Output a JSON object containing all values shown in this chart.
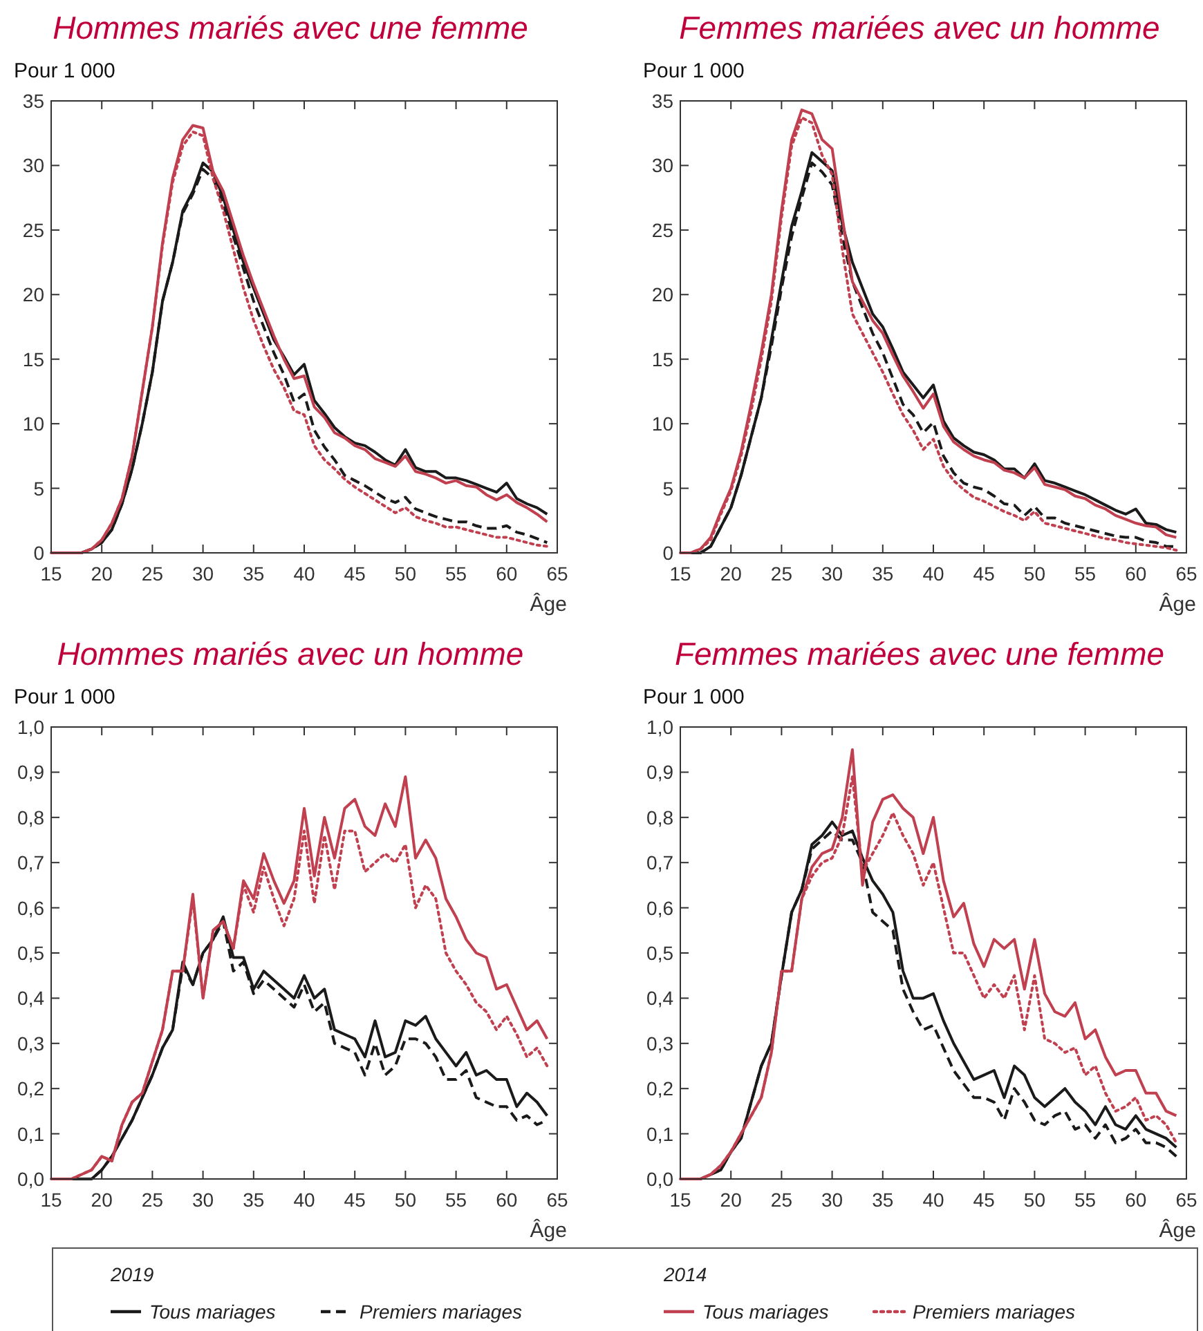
{
  "chart_data": [
    {
      "type": "line",
      "title": "Hommes mariés avec une femme",
      "ylabel": "Pour 1 000",
      "xlabel": "Âge",
      "legend": "bottom",
      "annotations": [
        "2019",
        "2014"
      ],
      "x": [
        15,
        16,
        17,
        18,
        19,
        20,
        21,
        22,
        23,
        24,
        25,
        26,
        27,
        28,
        29,
        30,
        31,
        32,
        33,
        34,
        35,
        36,
        37,
        38,
        39,
        40,
        41,
        42,
        43,
        44,
        45,
        46,
        47,
        48,
        49,
        50,
        51,
        52,
        53,
        54,
        55,
        56,
        57,
        58,
        59,
        60,
        61,
        62,
        63,
        64
      ],
      "xlim": [
        15,
        65
      ],
      "xticks": [
        15,
        20,
        25,
        30,
        35,
        40,
        45,
        50,
        55,
        60,
        65
      ],
      "ylim": [
        0,
        35
      ],
      "yticks": [
        0,
        5,
        10,
        15,
        20,
        25,
        30,
        35
      ],
      "series": [
        {
          "name": "Tous mariages",
          "color": "#1a1a1a",
          "line_style": "solid",
          "values": [
            0,
            0,
            0,
            0,
            0.3,
            0.8,
            1.8,
            3.8,
            6.5,
            10,
            14,
            19.5,
            22.5,
            26.5,
            28,
            30.2,
            29.5,
            27.5,
            25,
            22.5,
            20.5,
            18.5,
            16.5,
            15.2,
            13.8,
            14.6,
            11.8,
            10.8,
            9.7,
            9,
            8.5,
            8.3,
            7.8,
            7.2,
            6.8,
            8,
            6.6,
            6.3,
            6.3,
            5.8,
            5.8,
            5.6,
            5.3,
            5,
            4.7,
            5.4,
            4.2,
            3.8,
            3.5,
            3
          ]
        },
        {
          "name": "Premiers mariages",
          "color": "#1a1a1a",
          "line_style": "dashed",
          "values": [
            0,
            0,
            0,
            0,
            0.3,
            0.8,
            1.8,
            3.8,
            6.5,
            10,
            14,
            19.5,
            22.5,
            26.3,
            27.8,
            29.7,
            29,
            27,
            24.5,
            22,
            19.5,
            17.5,
            15.5,
            13.8,
            11.7,
            12.3,
            9.5,
            8.2,
            7.2,
            6,
            5.6,
            5.2,
            4.7,
            4.2,
            3.9,
            4.3,
            3.4,
            3.1,
            2.8,
            2.6,
            2.4,
            2.4,
            2.1,
            1.9,
            1.9,
            2.1,
            1.6,
            1.4,
            1.1,
            0.8
          ]
        },
        {
          "name": "Tous mariages",
          "color": "#c0404f",
          "line_style": "solid",
          "values": [
            0,
            0,
            0,
            0,
            0.3,
            1,
            2.3,
            4.2,
            7.5,
            12.5,
            17.5,
            24,
            29,
            32,
            33.1,
            32.9,
            29.5,
            28,
            25.5,
            23,
            20.8,
            18.8,
            16.8,
            15,
            13.5,
            13.7,
            11.3,
            10.5,
            9.3,
            8.9,
            8.3,
            8,
            7.3,
            7,
            6.7,
            7.5,
            6.3,
            6.1,
            5.8,
            5.4,
            5.6,
            5.2,
            5.1,
            4.5,
            4.1,
            4.5,
            3.9,
            3.5,
            3,
            2.4
          ]
        },
        {
          "name": "Premiers mariages",
          "color": "#c0404f",
          "line_style": "dotted",
          "values": [
            0,
            0,
            0,
            0,
            0.3,
            1,
            2.3,
            4.2,
            7.5,
            12.5,
            17.5,
            23.8,
            28.7,
            31.5,
            32.6,
            32.3,
            29,
            26.5,
            23.5,
            20.5,
            18,
            16,
            14.2,
            12.8,
            11,
            10.7,
            8.3,
            7.2,
            6.5,
            5.7,
            5.1,
            4.6,
            4.1,
            3.6,
            3.1,
            3.5,
            2.8,
            2.5,
            2.3,
            2,
            2,
            1.8,
            1.6,
            1.4,
            1.2,
            1.2,
            1,
            0.8,
            0.6,
            0.5
          ]
        }
      ]
    },
    {
      "type": "line",
      "title": "Femmes mariées avec un homme",
      "ylabel": "Pour 1 000",
      "xlabel": "Âge",
      "x": [
        15,
        16,
        17,
        18,
        19,
        20,
        21,
        22,
        23,
        24,
        25,
        26,
        27,
        28,
        29,
        30,
        31,
        32,
        33,
        34,
        35,
        36,
        37,
        38,
        39,
        40,
        41,
        42,
        43,
        44,
        45,
        46,
        47,
        48,
        49,
        50,
        51,
        52,
        53,
        54,
        55,
        56,
        57,
        58,
        59,
        60,
        61,
        62,
        63,
        64
      ],
      "xlim": [
        15,
        65
      ],
      "xticks": [
        15,
        20,
        25,
        30,
        35,
        40,
        45,
        50,
        55,
        60,
        65
      ],
      "ylim": [
        0,
        35
      ],
      "yticks": [
        0,
        5,
        10,
        15,
        20,
        25,
        30,
        35
      ],
      "series": [
        {
          "color": "#1a1a1a",
          "line_style": "solid",
          "values": [
            0,
            0,
            0,
            0.5,
            2,
            3.5,
            6,
            9,
            12,
            16.5,
            21,
            25.3,
            28,
            31,
            30.3,
            29.6,
            25.5,
            22.5,
            20.5,
            18.5,
            17.5,
            15.8,
            14,
            13,
            12,
            13,
            10.2,
            8.9,
            8.3,
            7.8,
            7.6,
            7.2,
            6.5,
            6.5,
            5.8,
            6.9,
            5.6,
            5.4,
            5.1,
            4.8,
            4.5,
            4.1,
            3.7,
            3.3,
            3,
            3.4,
            2.3,
            2.2,
            1.8,
            1.6
          ]
        },
        {
          "color": "#1a1a1a",
          "line_style": "dashed",
          "values": [
            0,
            0,
            0,
            0.5,
            2,
            3.5,
            6,
            9,
            12,
            16,
            20.5,
            24.5,
            27.5,
            30.2,
            29.5,
            28.5,
            24.5,
            21,
            19,
            17,
            15.5,
            13.5,
            11.5,
            10.7,
            9.3,
            10.1,
            7.5,
            6.2,
            5.4,
            5.1,
            4.9,
            4.4,
            3.8,
            3.7,
            2.9,
            3.6,
            2.7,
            2.7,
            2.3,
            2.1,
            1.9,
            1.7,
            1.5,
            1.3,
            1.2,
            1.2,
            0.9,
            0.8,
            0.5,
            0.5
          ]
        },
        {
          "color": "#c0404f",
          "line_style": "solid",
          "values": [
            0,
            0,
            0.3,
            1.2,
            3.2,
            5,
            7.8,
            11.5,
            15.5,
            20,
            26.5,
            32,
            34.3,
            34,
            32,
            31.3,
            26,
            21,
            19.5,
            18,
            17,
            15.3,
            13.7,
            12.5,
            11.2,
            12.3,
            9.8,
            8.6,
            8,
            7.5,
            7.2,
            7,
            6.4,
            6.2,
            5.8,
            6.6,
            5.3,
            5.1,
            4.9,
            4.4,
            4.2,
            3.7,
            3.4,
            2.9,
            2.6,
            2.3,
            2.1,
            2,
            1.4,
            1.2
          ]
        },
        {
          "color": "#c0404f",
          "line_style": "dotted",
          "values": [
            0,
            0,
            0.3,
            1,
            3,
            4.8,
            7.5,
            11,
            15,
            19.5,
            26,
            31.5,
            33.7,
            33.3,
            30.8,
            29.3,
            23.5,
            18.5,
            17,
            15.5,
            14,
            12.3,
            10.7,
            9.5,
            8,
            8.8,
            6.7,
            5.6,
            4.9,
            4.3,
            4,
            3.6,
            3.2,
            2.9,
            2.5,
            3.2,
            2.3,
            2.1,
            1.9,
            1.7,
            1.5,
            1.3,
            1.1,
            1,
            0.8,
            0.7,
            0.6,
            0.5,
            0.4,
            0.2
          ]
        }
      ]
    },
    {
      "type": "line",
      "title": "Hommes mariés avec un homme",
      "ylabel": "Pour 1 000",
      "xlabel": "Âge",
      "x": [
        15,
        16,
        17,
        18,
        19,
        20,
        21,
        22,
        23,
        24,
        25,
        26,
        27,
        28,
        29,
        30,
        31,
        32,
        33,
        34,
        35,
        36,
        37,
        38,
        39,
        40,
        41,
        42,
        43,
        44,
        45,
        46,
        47,
        48,
        49,
        50,
        51,
        52,
        53,
        54,
        55,
        56,
        57,
        58,
        59,
        60,
        61,
        62,
        63,
        64
      ],
      "xlim": [
        15,
        65
      ],
      "xticks": [
        15,
        20,
        25,
        30,
        35,
        40,
        45,
        50,
        55,
        60,
        65
      ],
      "ylim": [
        0,
        1
      ],
      "yticks": [
        {
          "value": 0,
          "label": "0,0"
        },
        {
          "value": 0.1,
          "label": "0,1"
        },
        {
          "value": 0.2,
          "label": "0,2"
        },
        {
          "value": 0.3,
          "label": "0,3"
        },
        {
          "value": 0.4,
          "label": "0,4"
        },
        {
          "value": 0.5,
          "label": "0,5"
        },
        {
          "value": 0.6,
          "label": "0,6"
        },
        {
          "value": 0.7,
          "label": "0,7"
        },
        {
          "value": 0.8,
          "label": "0,8"
        },
        {
          "value": 0.9,
          "label": "0,9"
        },
        {
          "value": 1,
          "label": "1,0"
        }
      ],
      "series": [
        {
          "color": "#1a1a1a",
          "line_style": "solid",
          "values": [
            0,
            0,
            0,
            0,
            0,
            0.02,
            0.05,
            0.09,
            0.13,
            0.18,
            0.23,
            0.29,
            0.33,
            0.48,
            0.43,
            0.5,
            0.53,
            0.58,
            0.49,
            0.49,
            0.42,
            0.46,
            0.44,
            0.42,
            0.4,
            0.45,
            0.4,
            0.42,
            0.33,
            0.32,
            0.31,
            0.27,
            0.35,
            0.27,
            0.28,
            0.35,
            0.34,
            0.36,
            0.31,
            0.28,
            0.25,
            0.28,
            0.23,
            0.24,
            0.22,
            0.22,
            0.16,
            0.19,
            0.17,
            0.14
          ]
        },
        {
          "color": "#1a1a1a",
          "line_style": "dashed",
          "values": [
            0,
            0,
            0,
            0,
            0,
            0.02,
            0.05,
            0.09,
            0.13,
            0.18,
            0.23,
            0.29,
            0.33,
            0.47,
            0.43,
            0.5,
            0.53,
            0.57,
            0.46,
            0.48,
            0.41,
            0.44,
            0.42,
            0.4,
            0.38,
            0.43,
            0.37,
            0.39,
            0.3,
            0.29,
            0.28,
            0.23,
            0.3,
            0.23,
            0.25,
            0.31,
            0.31,
            0.3,
            0.27,
            0.22,
            0.22,
            0.24,
            0.18,
            0.17,
            0.16,
            0.16,
            0.13,
            0.14,
            0.12,
            0.13
          ]
        },
        {
          "color": "#c0404f",
          "line_style": "solid",
          "values": [
            0,
            0,
            0,
            0.01,
            0.02,
            0.05,
            0.04,
            0.12,
            0.17,
            0.19,
            0.26,
            0.33,
            0.46,
            0.46,
            0.63,
            0.4,
            0.55,
            0.57,
            0.51,
            0.66,
            0.62,
            0.72,
            0.66,
            0.61,
            0.66,
            0.82,
            0.67,
            0.8,
            0.71,
            0.82,
            0.84,
            0.78,
            0.76,
            0.83,
            0.78,
            0.89,
            0.71,
            0.75,
            0.71,
            0.62,
            0.58,
            0.53,
            0.5,
            0.49,
            0.42,
            0.43,
            0.38,
            0.33,
            0.35,
            0.31
          ]
        },
        {
          "color": "#c0404f",
          "line_style": "dotted",
          "values": [
            0,
            0,
            0,
            0.01,
            0.02,
            0.05,
            0.04,
            0.12,
            0.17,
            0.19,
            0.26,
            0.33,
            0.46,
            0.46,
            0.62,
            0.4,
            0.55,
            0.57,
            0.51,
            0.65,
            0.59,
            0.69,
            0.62,
            0.56,
            0.62,
            0.77,
            0.61,
            0.76,
            0.64,
            0.77,
            0.77,
            0.68,
            0.7,
            0.72,
            0.7,
            0.74,
            0.6,
            0.65,
            0.62,
            0.5,
            0.46,
            0.43,
            0.39,
            0.37,
            0.33,
            0.36,
            0.32,
            0.27,
            0.29,
            0.25
          ]
        }
      ]
    },
    {
      "type": "line",
      "title": "Femmes mariées avec une femme",
      "ylabel": "Pour 1 000",
      "xlabel": "Âge",
      "x": [
        15,
        16,
        17,
        18,
        19,
        20,
        21,
        22,
        23,
        24,
        25,
        26,
        27,
        28,
        29,
        30,
        31,
        32,
        33,
        34,
        35,
        36,
        37,
        38,
        39,
        40,
        41,
        42,
        43,
        44,
        45,
        46,
        47,
        48,
        49,
        50,
        51,
        52,
        53,
        54,
        55,
        56,
        57,
        58,
        59,
        60,
        61,
        62,
        63,
        64
      ],
      "xlim": [
        15,
        65
      ],
      "xticks": [
        15,
        20,
        25,
        30,
        35,
        40,
        45,
        50,
        55,
        60,
        65
      ],
      "ylim": [
        0,
        1
      ],
      "yticks": [
        {
          "value": 0,
          "label": "0,0"
        },
        {
          "value": 0.1,
          "label": "0,1"
        },
        {
          "value": 0.2,
          "label": "0,2"
        },
        {
          "value": 0.3,
          "label": "0,3"
        },
        {
          "value": 0.4,
          "label": "0,4"
        },
        {
          "value": 0.5,
          "label": "0,5"
        },
        {
          "value": 0.6,
          "label": "0,6"
        },
        {
          "value": 0.7,
          "label": "0,7"
        },
        {
          "value": 0.8,
          "label": "0,8"
        },
        {
          "value": 0.9,
          "label": "0,9"
        },
        {
          "value": 1,
          "label": "1,0"
        }
      ],
      "series": [
        {
          "color": "#1a1a1a",
          "line_style": "solid",
          "values": [
            0,
            0,
            0,
            0.01,
            0.02,
            0.06,
            0.09,
            0.17,
            0.25,
            0.3,
            0.45,
            0.59,
            0.64,
            0.74,
            0.76,
            0.79,
            0.76,
            0.77,
            0.71,
            0.66,
            0.63,
            0.59,
            0.46,
            0.4,
            0.4,
            0.41,
            0.35,
            0.3,
            0.26,
            0.22,
            0.23,
            0.24,
            0.18,
            0.25,
            0.23,
            0.18,
            0.16,
            0.18,
            0.2,
            0.17,
            0.15,
            0.12,
            0.16,
            0.12,
            0.11,
            0.14,
            0.11,
            0.1,
            0.09,
            0.07
          ]
        },
        {
          "color": "#1a1a1a",
          "line_style": "dashed",
          "values": [
            0,
            0,
            0,
            0.01,
            0.02,
            0.06,
            0.09,
            0.17,
            0.25,
            0.3,
            0.45,
            0.59,
            0.64,
            0.73,
            0.75,
            0.77,
            0.75,
            0.75,
            0.7,
            0.59,
            0.57,
            0.55,
            0.42,
            0.37,
            0.33,
            0.34,
            0.29,
            0.24,
            0.21,
            0.18,
            0.18,
            0.17,
            0.13,
            0.2,
            0.17,
            0.13,
            0.12,
            0.14,
            0.15,
            0.11,
            0.12,
            0.09,
            0.12,
            0.08,
            0.09,
            0.11,
            0.08,
            0.08,
            0.07,
            0.05
          ]
        },
        {
          "color": "#c0404f",
          "line_style": "solid",
          "values": [
            0,
            0,
            0,
            0.01,
            0.03,
            0.06,
            0.1,
            0.14,
            0.18,
            0.28,
            0.46,
            0.46,
            0.62,
            0.69,
            0.72,
            0.73,
            0.8,
            0.95,
            0.65,
            0.79,
            0.84,
            0.85,
            0.82,
            0.8,
            0.72,
            0.8,
            0.66,
            0.58,
            0.61,
            0.52,
            0.47,
            0.53,
            0.51,
            0.53,
            0.42,
            0.53,
            0.41,
            0.37,
            0.36,
            0.39,
            0.31,
            0.33,
            0.27,
            0.23,
            0.24,
            0.24,
            0.19,
            0.19,
            0.15,
            0.14
          ]
        },
        {
          "color": "#c0404f",
          "line_style": "dotted",
          "values": [
            0,
            0,
            0,
            0.01,
            0.03,
            0.06,
            0.1,
            0.14,
            0.18,
            0.28,
            0.46,
            0.46,
            0.62,
            0.67,
            0.7,
            0.71,
            0.76,
            0.89,
            0.68,
            0.72,
            0.76,
            0.81,
            0.76,
            0.72,
            0.65,
            0.7,
            0.6,
            0.5,
            0.5,
            0.45,
            0.4,
            0.43,
            0.4,
            0.45,
            0.33,
            0.45,
            0.31,
            0.3,
            0.28,
            0.29,
            0.23,
            0.25,
            0.19,
            0.15,
            0.16,
            0.18,
            0.13,
            0.14,
            0.12,
            0.08
          ]
        }
      ]
    }
  ]
}
